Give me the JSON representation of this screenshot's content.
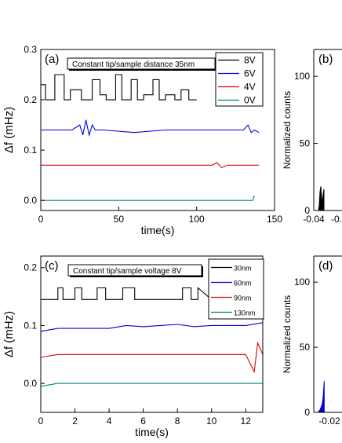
{
  "chart_data": [
    {
      "panel": "(a)",
      "type": "line",
      "annotation": "Constant tip/sample distance 35nm",
      "xlabel": "time(s)",
      "ylabel": "Δf (mHz)",
      "xlim": [
        0,
        150
      ],
      "ylim": [
        -0.02,
        0.3
      ],
      "xticks": [
        "0",
        "50",
        "100",
        "150"
      ],
      "yticks": [
        "0.0",
        "0.1",
        "0.2",
        "0.3"
      ],
      "legend_placement": "top-right",
      "series": [
        {
          "name": "8V",
          "color": "#000000",
          "x": [
            0,
            3,
            3,
            9,
            9,
            15,
            15,
            19,
            19,
            26,
            26,
            33,
            33,
            38,
            38,
            42,
            42,
            48,
            48,
            52,
            52,
            58,
            58,
            62,
            62,
            66,
            66,
            72,
            72,
            76,
            76,
            80,
            80,
            86,
            86,
            90,
            90,
            95,
            95,
            100
          ],
          "y": [
            0.23,
            0.23,
            0.2,
            0.2,
            0.25,
            0.25,
            0.2,
            0.2,
            0.22,
            0.22,
            0.2,
            0.2,
            0.24,
            0.24,
            0.21,
            0.21,
            0.2,
            0.2,
            0.25,
            0.25,
            0.2,
            0.2,
            0.24,
            0.24,
            0.2,
            0.2,
            0.21,
            0.21,
            0.24,
            0.24,
            0.2,
            0.2,
            0.21,
            0.21,
            0.2,
            0.2,
            0.22,
            0.22,
            0.2,
            0.2
          ]
        },
        {
          "name": "6V",
          "color": "#0000e0",
          "x": [
            0,
            20,
            25,
            27,
            29,
            31,
            33,
            35,
            40,
            60,
            80,
            100,
            120,
            130,
            133,
            135,
            137,
            140
          ],
          "y": [
            0.14,
            0.14,
            0.15,
            0.13,
            0.16,
            0.13,
            0.15,
            0.14,
            0.14,
            0.135,
            0.14,
            0.14,
            0.14,
            0.14,
            0.15,
            0.135,
            0.14,
            0.135
          ]
        },
        {
          "name": "4V",
          "color": "#e00000",
          "x": [
            0,
            20,
            40,
            60,
            80,
            100,
            110,
            113,
            116,
            120,
            140
          ],
          "y": [
            0.07,
            0.07,
            0.07,
            0.07,
            0.07,
            0.07,
            0.07,
            0.075,
            0.065,
            0.07,
            0.07
          ]
        },
        {
          "name": "0V",
          "color": "#008080",
          "x": [
            0,
            30,
            60,
            90,
            120,
            136,
            137
          ],
          "y": [
            0.0,
            0.0,
            0.0,
            0.0,
            0.0,
            0.0,
            0.01
          ]
        }
      ]
    },
    {
      "panel": "(b)",
      "type": "area",
      "ylabel": "Normalized counts",
      "xlim": [
        -0.04,
        0.0
      ],
      "ylim": [
        0,
        120
      ],
      "xticks": [
        "-0.04"
      ],
      "xticks_partial": [
        "-0."
      ],
      "yticks": [
        "0",
        "50",
        "100"
      ],
      "series": [
        {
          "name": "",
          "color": "#000000",
          "x": [
            -0.034,
            -0.033,
            -0.032,
            -0.031,
            -0.03,
            -0.029,
            -0.028,
            -0.027
          ],
          "y": [
            0,
            4,
            14,
            18,
            10,
            6,
            12,
            16
          ]
        }
      ]
    },
    {
      "panel": "(c)",
      "type": "line",
      "annotation": "Constant tip/sample voltage 8V",
      "xlabel": "time(s)",
      "ylabel": "Δf (mHz)",
      "xlim": [
        0,
        13
      ],
      "ylim": [
        -0.05,
        0.22
      ],
      "xticks": [
        "0",
        "2",
        "4",
        "6",
        "8",
        "10",
        "12"
      ],
      "yticks": [
        "0.0",
        "0.1",
        "0.2"
      ],
      "legend_placement": "top-right",
      "series": [
        {
          "name": "30nm",
          "color": "#000000",
          "x": [
            0,
            1,
            1,
            1.3,
            1.3,
            2,
            2,
            2.4,
            2.4,
            3.3,
            3.3,
            3.8,
            3.8,
            4.8,
            4.8,
            5.5,
            5.5,
            6,
            6,
            8.3,
            8.3,
            8.8,
            8.8,
            9.2,
            9.2,
            10
          ],
          "y": [
            0.145,
            0.145,
            0.165,
            0.165,
            0.145,
            0.145,
            0.165,
            0.165,
            0.145,
            0.145,
            0.165,
            0.165,
            0.145,
            0.145,
            0.165,
            0.165,
            0.145,
            0.145,
            0.145,
            0.145,
            0.165,
            0.165,
            0.145,
            0.145,
            0.165,
            0.145
          ]
        },
        {
          "name": "60nm",
          "color": "#0000e0",
          "x": [
            0,
            1,
            2,
            3,
            4,
            5,
            6,
            7,
            8,
            9,
            10,
            11,
            12,
            13
          ],
          "y": [
            0.09,
            0.095,
            0.095,
            0.095,
            0.095,
            0.1,
            0.098,
            0.1,
            0.102,
            0.098,
            0.1,
            0.1,
            0.1,
            0.105
          ]
        },
        {
          "name": "90nm",
          "color": "#e00000",
          "x": [
            0,
            1,
            2,
            3,
            4,
            5,
            6,
            7,
            8,
            9,
            10,
            11,
            12,
            12.5,
            12.7,
            13
          ],
          "y": [
            0.045,
            0.05,
            0.05,
            0.05,
            0.05,
            0.05,
            0.05,
            0.05,
            0.05,
            0.05,
            0.05,
            0.05,
            0.05,
            0.02,
            0.07,
            0.05
          ]
        },
        {
          "name": "130nm",
          "color": "#008080",
          "x": [
            0,
            1,
            2,
            3,
            4,
            5,
            6,
            7,
            8,
            9,
            10,
            11,
            12,
            13
          ],
          "y": [
            -0.005,
            0.0,
            0.0,
            0.0,
            0.0,
            0.0,
            0.0,
            0.0,
            0.0,
            0.0,
            0.0,
            0.0,
            0.0,
            0.0
          ]
        }
      ]
    },
    {
      "panel": "(d)",
      "type": "area",
      "ylabel": "Normalized counts",
      "xlim": [
        -0.03,
        0.0
      ],
      "ylim": [
        0,
        120
      ],
      "xticks": [],
      "xticks_partial": [
        "-0.02"
      ],
      "yticks": [
        "0",
        "50",
        "100"
      ],
      "series": [
        {
          "name": "",
          "color": "#0000cc",
          "x": [
            -0.026,
            -0.024,
            -0.022,
            -0.021,
            -0.02
          ],
          "y": [
            0,
            2,
            6,
            12,
            24
          ]
        }
      ]
    }
  ]
}
